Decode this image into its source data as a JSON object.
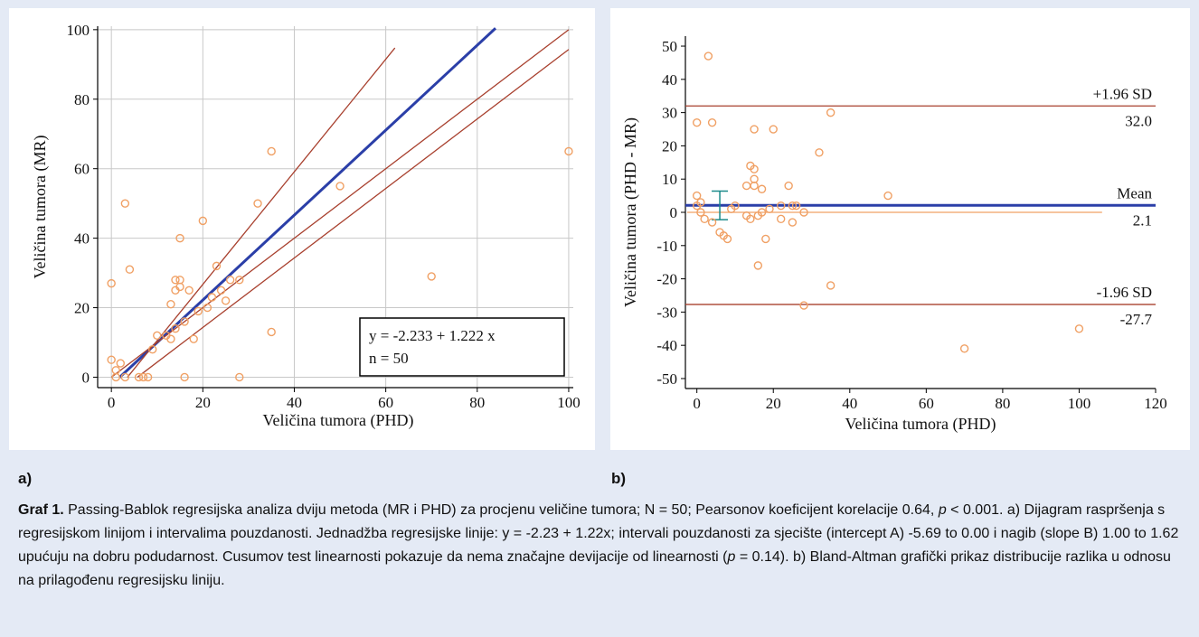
{
  "colors": {
    "background": "#e4eaf5",
    "point": "#f0a064",
    "regression_line": "#2b3fa8",
    "ci_line": "#a8402e",
    "error_bar": "#1a8a8a"
  },
  "chart_data": [
    {
      "type": "scatter",
      "xlabel": "Veličina tumora (PHD)",
      "ylabel": "Veličina tumora (MR)",
      "xlim": [
        -3,
        101
      ],
      "ylim": [
        -3,
        101
      ],
      "xticks": [
        0,
        20,
        40,
        60,
        80,
        100
      ],
      "yticks": [
        0,
        20,
        40,
        60,
        80,
        100
      ],
      "grid": true,
      "points": [
        [
          0,
          27
        ],
        [
          0,
          5
        ],
        [
          1,
          2
        ],
        [
          1,
          0
        ],
        [
          2,
          4
        ],
        [
          3,
          50
        ],
        [
          3,
          0
        ],
        [
          4,
          31
        ],
        [
          6,
          0
        ],
        [
          7,
          0
        ],
        [
          8,
          0
        ],
        [
          9,
          8
        ],
        [
          10,
          12
        ],
        [
          12,
          12
        ],
        [
          13,
          21
        ],
        [
          13,
          11
        ],
        [
          14,
          14
        ],
        [
          14,
          28
        ],
        [
          14,
          25
        ],
        [
          15,
          40
        ],
        [
          15,
          28
        ],
        [
          15,
          26
        ],
        [
          16,
          16
        ],
        [
          16,
          0
        ],
        [
          17,
          25
        ],
        [
          18,
          11
        ],
        [
          19,
          19
        ],
        [
          20,
          45
        ],
        [
          21,
          20
        ],
        [
          22,
          23
        ],
        [
          23,
          32
        ],
        [
          24,
          25
        ],
        [
          25,
          22
        ],
        [
          26,
          28
        ],
        [
          28,
          28
        ],
        [
          28,
          0
        ],
        [
          32,
          50
        ],
        [
          35,
          65
        ],
        [
          35,
          13
        ],
        [
          50,
          55
        ],
        [
          70,
          29
        ],
        [
          100,
          65
        ]
      ],
      "lines": [
        {
          "role": "regression",
          "intercept": -2.233,
          "slope": 1.222,
          "x_range": [
            1.8,
            84
          ]
        },
        {
          "role": "ci-upper",
          "intercept": -5.69,
          "slope": 1.62,
          "x_range": [
            3.5,
            62
          ]
        },
        {
          "role": "ci-lower",
          "intercept": 0.0,
          "slope": 1.0,
          "x_range": [
            0,
            100
          ]
        },
        {
          "role": "ci-lower-2",
          "intercept": -5.69,
          "slope": 1.0,
          "x_range": [
            5.7,
            100
          ]
        }
      ],
      "equation_text": "y = -2.233  +  1.222  x",
      "n_text": "n = 50"
    },
    {
      "type": "scatter",
      "xlabel": "Veličina tumora (PHD)",
      "ylabel": "Veličina tumora (PHD - MR)",
      "xlim": [
        -3,
        120
      ],
      "ylim": [
        -53,
        53
      ],
      "xticks": [
        0,
        20,
        40,
        60,
        80,
        100,
        120
      ],
      "yticks": [
        -50,
        -40,
        -30,
        -20,
        -10,
        0,
        10,
        20,
        30,
        40,
        50
      ],
      "grid": false,
      "points": [
        [
          0,
          27
        ],
        [
          0,
          5
        ],
        [
          0,
          2
        ],
        [
          1,
          3
        ],
        [
          1,
          0
        ],
        [
          2,
          -2
        ],
        [
          3,
          47
        ],
        [
          4,
          27
        ],
        [
          4,
          -3
        ],
        [
          6,
          -6
        ],
        [
          7,
          -7
        ],
        [
          8,
          -8
        ],
        [
          9,
          1
        ],
        [
          10,
          2
        ],
        [
          13,
          8
        ],
        [
          13,
          -1
        ],
        [
          14,
          14
        ],
        [
          14,
          -2
        ],
        [
          15,
          25
        ],
        [
          15,
          13
        ],
        [
          15,
          10
        ],
        [
          15,
          8
        ],
        [
          16,
          -1
        ],
        [
          16,
          -16
        ],
        [
          17,
          0
        ],
        [
          17,
          7
        ],
        [
          18,
          -8
        ],
        [
          19,
          1
        ],
        [
          20,
          25
        ],
        [
          22,
          2
        ],
        [
          22,
          -2
        ],
        [
          24,
          8
        ],
        [
          25,
          -3
        ],
        [
          25,
          2
        ],
        [
          26,
          2
        ],
        [
          28,
          0
        ],
        [
          28,
          -28
        ],
        [
          32,
          18
        ],
        [
          35,
          30
        ],
        [
          35,
          -22
        ],
        [
          50,
          5
        ],
        [
          70,
          -41
        ],
        [
          100,
          -35
        ]
      ],
      "zero_line_x_max": 106,
      "mean": 2.1,
      "upper_loa": 32.0,
      "lower_loa": -27.7,
      "mean_ci_bar": {
        "x": 6,
        "low": -2.2,
        "high": 6.4
      },
      "labels": {
        "upper_label": "+1.96 SD",
        "upper_value": "32.0",
        "mean_label": "Mean",
        "mean_value": "2.1",
        "lower_label": "-1.96 SD",
        "lower_value": "-27.7"
      }
    }
  ],
  "panel_labels": {
    "a": "a)",
    "b": "b)"
  },
  "caption": {
    "lead": "Graf 1.",
    "t1": " Passing-Bablok regresijska analiza dviju metoda (MR i PHD) za procjenu veličine tumora; N = 50; Pearsonov koeficijent korelacije 0.64, ",
    "p1": "p",
    "t2": " < 0.001. a) Dijagram raspršenja s regresijskom linijom i intervalima pouzdanosti. Jednadžba regresijske linije: y = -2.23 + 1.22x; intervali pouzdanosti za sjecište (intercept A) -5.69 to 0.00 i nagib (slope B) 1.00 to 1.62 upućuju na dobru podudarnost. Cusumov test linearnosti pokazuje da nema značajne devijacije od linearnosti (",
    "p2": "p",
    "t3": " = 0.14). b) Bland-Altman grafički prikaz distribucije razlika u odnosu na prilagođenu regresijsku liniju."
  }
}
